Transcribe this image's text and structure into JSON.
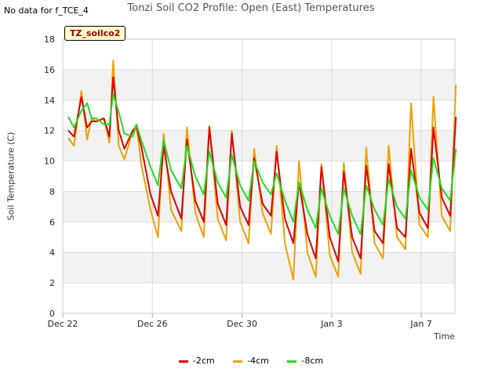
{
  "no_data_text": "No data for f_TCE_4",
  "chart_data": {
    "type": "line",
    "title": "Tonzi Soil CO2 Profile: Open (East) Temperatures",
    "xlabel": "Time",
    "ylabel": "Soil Temperature (C)",
    "tag": "TZ_soilco2",
    "ylim": [
      0,
      18
    ],
    "yticks": [
      0,
      2,
      4,
      6,
      8,
      10,
      12,
      14,
      16,
      18
    ],
    "xlim": [
      "2021-12-22",
      "2022-01-08 12:00"
    ],
    "xticks": [
      "Dec 22",
      "Dec 26",
      "Dec 30",
      "Jan 3",
      "Jan 7"
    ],
    "grid": true,
    "legend_position": "bottom",
    "series": [
      {
        "name": "-2cm",
        "color": "#dd0000",
        "x": [
          "2021-12-22 06:00",
          "2021-12-22 12:00",
          "2021-12-22 20:00",
          "2021-12-23 02:00",
          "2021-12-23 07:00",
          "2021-12-23 12:00",
          "2021-12-23 20:00",
          "2021-12-24 02:00",
          "2021-12-24 06:00",
          "2021-12-24 12:00",
          "2021-12-24 18:00",
          "2021-12-25 03:00",
          "2021-12-25 07:00",
          "2021-12-25 12:00",
          "2021-12-25 22:00",
          "2021-12-26 06:00",
          "2021-12-26 12:00",
          "2021-12-26 20:00",
          "2021-12-27 07:00",
          "2021-12-27 13:00",
          "2021-12-27 22:00",
          "2021-12-28 07:00",
          "2021-12-28 13:00",
          "2021-12-28 22:00",
          "2021-12-29 07:00",
          "2021-12-29 13:00",
          "2021-12-29 22:00",
          "2021-12-30 07:00",
          "2021-12-30 13:00",
          "2021-12-30 22:00",
          "2021-12-31 07:00",
          "2021-12-31 13:00",
          "2021-12-31 22:00",
          "2022-01-01 07:00",
          "2022-01-01 13:00",
          "2022-01-01 22:00",
          "2022-01-02 07:00",
          "2022-01-02 13:00",
          "2022-01-02 22:00",
          "2022-01-03 07:00",
          "2022-01-03 13:00",
          "2022-01-03 22:00",
          "2022-01-04 07:00",
          "2022-01-04 13:00",
          "2022-01-04 22:00",
          "2022-01-05 07:00",
          "2022-01-05 13:00",
          "2022-01-05 22:00",
          "2022-01-06 07:00",
          "2022-01-06 13:00",
          "2022-01-06 22:00",
          "2022-01-07 07:00",
          "2022-01-07 13:00",
          "2022-01-07 22:00",
          "2022-01-08 07:00",
          "2022-01-08 13:00"
        ],
        "values": [
          12.0,
          11.6,
          14.2,
          12.2,
          12.6,
          12.6,
          12.8,
          11.6,
          15.5,
          12.0,
          10.8,
          12.0,
          12.2,
          11.0,
          7.8,
          6.4,
          11.0,
          8.0,
          6.2,
          11.4,
          7.4,
          6.0,
          12.2,
          7.2,
          5.8,
          11.8,
          7.0,
          5.8,
          10.2,
          7.2,
          6.4,
          10.6,
          6.2,
          4.6,
          8.6,
          5.2,
          3.6,
          9.6,
          5.0,
          3.4,
          9.3,
          5.0,
          3.6,
          9.7,
          5.4,
          4.6,
          9.8,
          5.6,
          5.0,
          10.8,
          6.6,
          5.6,
          12.2,
          7.6,
          6.4,
          12.9
        ]
      },
      {
        "name": "-4cm",
        "color": "#f0a000",
        "x": [
          "2021-12-22 06:00",
          "2021-12-22 12:00",
          "2021-12-22 20:00",
          "2021-12-23 02:00",
          "2021-12-23 07:00",
          "2021-12-23 12:00",
          "2021-12-23 20:00",
          "2021-12-24 02:00",
          "2021-12-24 06:00",
          "2021-12-24 12:00",
          "2021-12-24 18:00",
          "2021-12-25 03:00",
          "2021-12-25 07:00",
          "2021-12-25 12:00",
          "2021-12-25 22:00",
          "2021-12-26 06:00",
          "2021-12-26 12:00",
          "2021-12-26 20:00",
          "2021-12-27 07:00",
          "2021-12-27 13:00",
          "2021-12-27 22:00",
          "2021-12-28 07:00",
          "2021-12-28 13:00",
          "2021-12-28 22:00",
          "2021-12-29 07:00",
          "2021-12-29 13:00",
          "2021-12-29 22:00",
          "2021-12-30 07:00",
          "2021-12-30 13:00",
          "2021-12-30 22:00",
          "2021-12-31 07:00",
          "2021-12-31 13:00",
          "2021-12-31 22:00",
          "2022-01-01 07:00",
          "2022-01-01 13:00",
          "2022-01-01 22:00",
          "2022-01-02 07:00",
          "2022-01-02 13:00",
          "2022-01-02 22:00",
          "2022-01-03 07:00",
          "2022-01-03 13:00",
          "2022-01-03 22:00",
          "2022-01-04 07:00",
          "2022-01-04 13:00",
          "2022-01-04 22:00",
          "2022-01-05 07:00",
          "2022-01-05 13:00",
          "2022-01-05 22:00",
          "2022-01-06 07:00",
          "2022-01-06 13:00",
          "2022-01-06 22:00",
          "2022-01-07 07:00",
          "2022-01-07 13:00",
          "2022-01-07 22:00",
          "2022-01-08 07:00",
          "2022-01-08 13:00"
        ],
        "values": [
          11.5,
          11.0,
          14.6,
          11.4,
          12.8,
          12.6,
          12.8,
          11.2,
          16.6,
          11.0,
          10.1,
          12.0,
          12.4,
          9.8,
          6.8,
          5.0,
          11.8,
          6.8,
          5.4,
          12.2,
          6.6,
          5.0,
          12.3,
          6.2,
          4.8,
          12.0,
          6.0,
          4.6,
          10.8,
          6.6,
          5.2,
          11.0,
          4.6,
          2.2,
          10.0,
          4.0,
          2.4,
          9.8,
          3.8,
          2.4,
          9.9,
          4.0,
          2.6,
          10.9,
          4.6,
          3.6,
          11.0,
          5.0,
          4.2,
          13.8,
          5.8,
          5.0,
          14.2,
          6.4,
          5.4,
          15.0
        ]
      },
      {
        "name": "-8cm",
        "color": "#22dd22",
        "x": [
          "2021-12-22 06:00",
          "2021-12-22 12:00",
          "2021-12-22 20:00",
          "2021-12-23 02:00",
          "2021-12-23 07:00",
          "2021-12-23 12:00",
          "2021-12-23 20:00",
          "2021-12-24 02:00",
          "2021-12-24 06:00",
          "2021-12-24 12:00",
          "2021-12-24 18:00",
          "2021-12-25 03:00",
          "2021-12-25 07:00",
          "2021-12-25 12:00",
          "2021-12-25 22:00",
          "2021-12-26 06:00",
          "2021-12-26 12:00",
          "2021-12-26 20:00",
          "2021-12-27 07:00",
          "2021-12-27 13:00",
          "2021-12-27 22:00",
          "2021-12-28 07:00",
          "2021-12-28 13:00",
          "2021-12-28 22:00",
          "2021-12-29 07:00",
          "2021-12-29 13:00",
          "2021-12-29 22:00",
          "2021-12-30 07:00",
          "2021-12-30 13:00",
          "2021-12-30 22:00",
          "2021-12-31 07:00",
          "2021-12-31 13:00",
          "2021-12-31 22:00",
          "2022-01-01 07:00",
          "2022-01-01 13:00",
          "2022-01-01 22:00",
          "2022-01-02 07:00",
          "2022-01-02 13:00",
          "2022-01-02 22:00",
          "2022-01-03 07:00",
          "2022-01-03 13:00",
          "2022-01-03 22:00",
          "2022-01-04 07:00",
          "2022-01-04 13:00",
          "2022-01-04 22:00",
          "2022-01-05 07:00",
          "2022-01-05 13:00",
          "2022-01-05 22:00",
          "2022-01-06 07:00",
          "2022-01-06 13:00",
          "2022-01-06 22:00",
          "2022-01-07 07:00",
          "2022-01-07 13:00",
          "2022-01-07 22:00",
          "2022-01-08 07:00",
          "2022-01-08 13:00"
        ],
        "values": [
          12.9,
          12.2,
          13.3,
          13.8,
          12.8,
          12.8,
          12.4,
          12.4,
          14.4,
          13.2,
          11.8,
          11.6,
          12.4,
          11.4,
          9.6,
          8.4,
          11.4,
          9.4,
          8.2,
          11.0,
          9.0,
          7.8,
          10.6,
          8.6,
          7.6,
          10.4,
          8.4,
          7.4,
          10.0,
          8.6,
          7.8,
          9.2,
          7.4,
          6.0,
          8.6,
          6.8,
          5.6,
          8.2,
          6.4,
          5.2,
          8.2,
          6.4,
          5.2,
          8.4,
          6.8,
          5.8,
          8.8,
          7.0,
          6.2,
          9.4,
          7.6,
          6.8,
          10.2,
          8.2,
          7.4,
          10.8
        ]
      }
    ]
  }
}
